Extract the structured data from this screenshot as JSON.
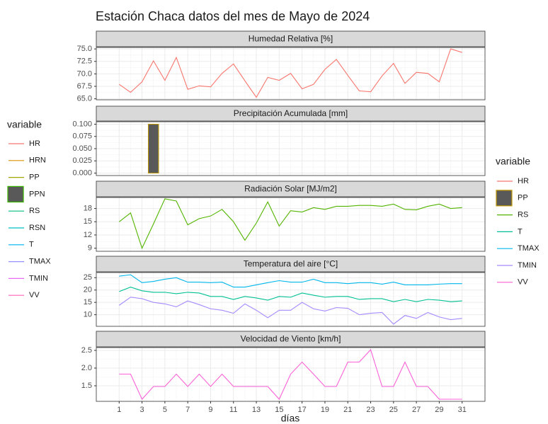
{
  "title": "Estación Chaca datos del mes de Mayo de 2024",
  "x_label": "días",
  "legends": [
    {
      "title": "variable",
      "items": [
        {
          "name": "HR",
          "color": "#F8766D"
        },
        {
          "name": "HRN",
          "color": "#D89000"
        },
        {
          "name": "PP",
          "color": "#A3A500"
        },
        {
          "name": "PPN",
          "color": "#39B600",
          "fill": "#595959"
        },
        {
          "name": "RS",
          "color": "#00BF7D"
        },
        {
          "name": "RSN",
          "color": "#00BFC4"
        },
        {
          "name": "T",
          "color": "#00B0F6"
        },
        {
          "name": "TMAX",
          "color": "#9590FF"
        },
        {
          "name": "TMIN",
          "color": "#E76BF3"
        },
        {
          "name": "VV",
          "color": "#FF62BC"
        }
      ]
    },
    {
      "title": "variable",
      "items": [
        {
          "name": "HR",
          "color": "#F8766D"
        },
        {
          "name": "PP",
          "color": "#C49A00",
          "fill": "#595959"
        },
        {
          "name": "RS",
          "color": "#53B400"
        },
        {
          "name": "T",
          "color": "#00C094"
        },
        {
          "name": "TMAX",
          "color": "#00B6EB"
        },
        {
          "name": "TMIN",
          "color": "#A58AFF"
        },
        {
          "name": "VV",
          "color": "#FB61D7"
        }
      ]
    }
  ],
  "chart_data": [
    {
      "type": "line",
      "title": "Humedad Relativa [%]",
      "x": [
        1,
        2,
        3,
        4,
        5,
        6,
        7,
        8,
        9,
        10,
        11,
        12,
        13,
        14,
        15,
        16,
        17,
        18,
        19,
        20,
        21,
        22,
        23,
        24,
        25,
        26,
        27,
        28,
        29,
        30,
        31
      ],
      "xlim": [
        -1,
        33
      ],
      "xticks": [
        1,
        3,
        5,
        7,
        9,
        11,
        13,
        15,
        17,
        19,
        21,
        23,
        25,
        27,
        29,
        31
      ],
      "ylim": [
        64.8,
        75.3
      ],
      "yticks": [
        {
          "value": 65,
          "label": "65.0"
        },
        {
          "value": 67.5,
          "label": "67.5"
        },
        {
          "value": 70,
          "label": "70.0"
        },
        {
          "value": 72.5,
          "label": "72.5"
        },
        {
          "value": 75,
          "label": "75.0"
        }
      ],
      "series": [
        {
          "name": "HR",
          "color": "#F8766D",
          "values": [
            67.9,
            66.3,
            68.4,
            72.6,
            68.7,
            73.3,
            66.9,
            67.6,
            67.4,
            70.1,
            72.0,
            68.6,
            65.3,
            69.3,
            68.7,
            70.1,
            67.0,
            67.9,
            70.9,
            72.9,
            69.7,
            66.6,
            66.4,
            69.6,
            72.1,
            68.1,
            70.3,
            70.1,
            68.4,
            75.0,
            74.3
          ]
        }
      ]
    },
    {
      "type": "bar",
      "title": "Precipitación Acumulada [mm]",
      "x": [
        1,
        2,
        3,
        4,
        5,
        6,
        7,
        8,
        9,
        10,
        11,
        12,
        13,
        14,
        15,
        16,
        17,
        18,
        19,
        20,
        21,
        22,
        23,
        24,
        25,
        26,
        27,
        28,
        29,
        30,
        31
      ],
      "xlim": [
        -1,
        33
      ],
      "xticks": [
        1,
        3,
        5,
        7,
        9,
        11,
        13,
        15,
        17,
        19,
        21,
        23,
        25,
        27,
        29,
        31
      ],
      "ylim": [
        -0.005,
        0.105
      ],
      "yticks": [
        {
          "value": 0,
          "label": "0.000"
        },
        {
          "value": 0.025,
          "label": "0.025"
        },
        {
          "value": 0.05,
          "label": "0.050"
        },
        {
          "value": 0.075,
          "label": "0.075"
        },
        {
          "value": 0.1,
          "label": "0.100"
        }
      ],
      "series": [
        {
          "name": "PP",
          "color": "#C49A00",
          "fill": "#595959",
          "values": [
            0,
            0,
            0,
            0.1,
            0,
            0,
            0,
            0,
            0,
            0,
            0,
            0,
            0,
            0,
            0,
            0,
            0,
            0,
            0,
            0,
            0,
            0,
            0,
            0,
            0,
            0,
            0,
            0,
            0,
            0,
            0
          ]
        }
      ]
    },
    {
      "type": "line",
      "title": "Radiación Solar [MJ/m2]",
      "x": [
        1,
        2,
        3,
        4,
        5,
        6,
        7,
        8,
        9,
        10,
        11,
        12,
        13,
        14,
        15,
        16,
        17,
        18,
        19,
        20,
        21,
        22,
        23,
        24,
        25,
        26,
        27,
        28,
        29,
        30,
        31
      ],
      "xlim": [
        -1,
        33
      ],
      "xticks": [
        1,
        3,
        5,
        7,
        9,
        11,
        13,
        15,
        17,
        19,
        21,
        23,
        25,
        27,
        29,
        31
      ],
      "ylim": [
        8.3,
        20.5
      ],
      "yticks": [
        9,
        12,
        15,
        18
      ],
      "series": [
        {
          "name": "RS",
          "color": "#53B400",
          "values": [
            15.0,
            17.0,
            9.0,
            14.5,
            20.2,
            19.7,
            14.3,
            15.7,
            16.3,
            17.8,
            15.0,
            10.8,
            14.7,
            19.5,
            14.0,
            17.5,
            17.2,
            18.2,
            17.8,
            18.5,
            18.5,
            18.7,
            18.7,
            18.5,
            19.0,
            17.8,
            17.7,
            18.5,
            19.0,
            18.0,
            18.2
          ]
        }
      ]
    },
    {
      "type": "line",
      "title": "Temperatura del aire [°C]",
      "x": [
        1,
        2,
        3,
        4,
        5,
        6,
        7,
        8,
        9,
        10,
        11,
        12,
        13,
        14,
        15,
        16,
        17,
        18,
        19,
        20,
        21,
        22,
        23,
        24,
        25,
        26,
        27,
        28,
        29,
        30,
        31
      ],
      "xlim": [
        -1,
        33
      ],
      "xticks": [
        1,
        3,
        5,
        7,
        9,
        11,
        13,
        15,
        17,
        19,
        21,
        23,
        25,
        27,
        29,
        31
      ],
      "ylim": [
        5.3,
        27.1
      ],
      "yticks": [
        10,
        15,
        20,
        25
      ],
      "series": [
        {
          "name": "T",
          "color": "#00C094",
          "values": [
            19.4,
            21.2,
            19.7,
            19.1,
            19.1,
            18.5,
            19.1,
            18.8,
            17.4,
            17.4,
            16.2,
            17.4,
            16.8,
            15.9,
            17.4,
            17.1,
            18.8,
            17.9,
            17.1,
            17.4,
            17.4,
            16.2,
            16.5,
            16.5,
            15.3,
            16.2,
            15.3,
            16.2,
            15.9,
            15.3,
            15.6
          ]
        },
        {
          "name": "TMAX",
          "color": "#00B6EB",
          "values": [
            25.6,
            26.2,
            23.0,
            23.5,
            24.4,
            25.0,
            23.2,
            23.2,
            23.0,
            23.2,
            21.2,
            21.2,
            22.1,
            23.0,
            23.8,
            23.2,
            23.2,
            24.4,
            23.0,
            23.0,
            22.6,
            23.0,
            23.0,
            22.4,
            23.2,
            22.1,
            22.1,
            22.1,
            22.4,
            22.6,
            22.6
          ]
        },
        {
          "name": "TMIN",
          "color": "#A58AFF",
          "values": [
            13.8,
            17.1,
            16.5,
            15.0,
            14.4,
            13.2,
            15.6,
            14.1,
            12.4,
            11.8,
            10.6,
            14.4,
            11.8,
            8.8,
            11.8,
            11.8,
            15.0,
            12.4,
            11.5,
            12.9,
            12.6,
            10.0,
            10.6,
            10.9,
            6.2,
            9.7,
            8.5,
            10.9,
            9.1,
            8.0,
            8.5
          ]
        }
      ]
    },
    {
      "type": "line",
      "title": "Velocidad de Viento [km/h]",
      "x": [
        1,
        2,
        3,
        4,
        5,
        6,
        7,
        8,
        9,
        10,
        11,
        12,
        13,
        14,
        15,
        16,
        17,
        18,
        19,
        20,
        21,
        22,
        23,
        24,
        25,
        26,
        27,
        28,
        29,
        30,
        31
      ],
      "xlim": [
        -1,
        33
      ],
      "xticks": [
        1,
        3,
        5,
        7,
        9,
        11,
        13,
        15,
        17,
        19,
        21,
        23,
        25,
        27,
        29,
        31
      ],
      "ylim": [
        1.06,
        2.58
      ],
      "yticks": [
        1.5,
        {
          "value": 2,
          "label": "2.0"
        },
        2.5
      ],
      "series": [
        {
          "name": "VV",
          "color": "#FB61D7",
          "values": [
            1.83,
            1.83,
            1.12,
            1.48,
            1.48,
            1.83,
            1.48,
            1.83,
            1.48,
            1.83,
            1.48,
            1.48,
            1.48,
            1.48,
            1.12,
            1.83,
            2.17,
            1.83,
            1.48,
            1.48,
            2.17,
            2.17,
            2.52,
            1.48,
            1.48,
            2.17,
            1.48,
            1.48,
            1.12,
            1.12,
            1.12
          ]
        }
      ]
    }
  ]
}
